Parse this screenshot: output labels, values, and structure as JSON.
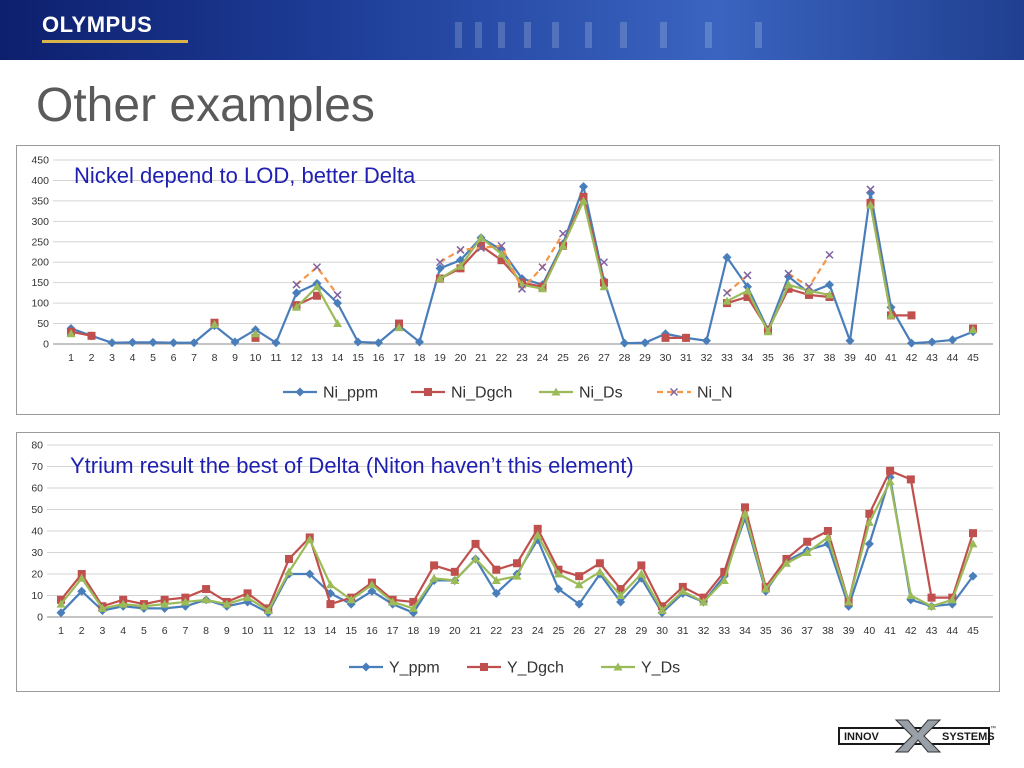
{
  "header": {
    "logo": "OLYMPUS"
  },
  "page": {
    "title": "Other examples"
  },
  "footer": {
    "logo_left": "INNOV",
    "logo_right": "SYSTEMS",
    "trademark": "™"
  },
  "colors": {
    "ppm": "#4a7ebb",
    "dgch": "#c0504d",
    "ds": "#9bbb59",
    "n": "#f79646",
    "n_marker": "#8064a2",
    "annotation": "#1f1fb0"
  },
  "chart_data": [
    {
      "type": "line",
      "annotation": "Nickel depend to LOD, better Delta",
      "categories": [
        "1",
        "2",
        "3",
        "4",
        "5",
        "6",
        "7",
        "8",
        "9",
        "10",
        "11",
        "12",
        "13",
        "14",
        "15",
        "16",
        "17",
        "18",
        "19",
        "20",
        "21",
        "22",
        "23",
        "24",
        "25",
        "26",
        "27",
        "28",
        "29",
        "30",
        "31",
        "32",
        "33",
        "34",
        "35",
        "36",
        "37",
        "38",
        "39",
        "40",
        "41",
        "42",
        "43",
        "44",
        "45"
      ],
      "ylim": [
        0,
        450
      ],
      "yticks": [
        0,
        50,
        100,
        150,
        200,
        250,
        300,
        350,
        400,
        450
      ],
      "grid": true,
      "legend_position": "bottom",
      "series": [
        {
          "name": "Ni_ppm",
          "marker": "diamond",
          "color": "#4a7ebb",
          "dash": false,
          "values": [
            38,
            20,
            3,
            4,
            4,
            3,
            3,
            45,
            5,
            35,
            3,
            125,
            148,
            100,
            5,
            3,
            45,
            5,
            185,
            205,
            260,
            230,
            160,
            145,
            245,
            385,
            155,
            2,
            3,
            25,
            15,
            8,
            212,
            140,
            35,
            165,
            125,
            145,
            8,
            370,
            90,
            2,
            5,
            10,
            30
          ]
        },
        {
          "name": "Ni_Dgch",
          "marker": "square",
          "color": "#c0504d",
          "dash": false,
          "values": [
            30,
            20,
            null,
            null,
            null,
            null,
            null,
            52,
            null,
            15,
            null,
            95,
            118,
            null,
            null,
            null,
            50,
            null,
            160,
            185,
            240,
            205,
            150,
            140,
            240,
            360,
            150,
            null,
            null,
            15,
            15,
            null,
            100,
            115,
            35,
            135,
            120,
            115,
            null,
            345,
            70,
            70,
            null,
            null,
            38
          ]
        },
        {
          "name": "Ni_Ds",
          "marker": "triangle",
          "color": "#9bbb59",
          "dash": false,
          "values": [
            25,
            null,
            null,
            null,
            null,
            null,
            null,
            48,
            null,
            25,
            null,
            90,
            140,
            50,
            null,
            null,
            40,
            null,
            160,
            190,
            260,
            220,
            145,
            135,
            240,
            350,
            140,
            null,
            null,
            null,
            null,
            null,
            105,
            130,
            30,
            145,
            130,
            120,
            null,
            340,
            70,
            null,
            null,
            null,
            35
          ]
        },
        {
          "name": "Ni_N",
          "marker": "x",
          "color": "#f79646",
          "dash": true,
          "values": [
            null,
            null,
            null,
            null,
            null,
            null,
            null,
            null,
            null,
            null,
            null,
            145,
            188,
            120,
            null,
            null,
            null,
            null,
            200,
            230,
            235,
            240,
            135,
            188,
            270,
            null,
            200,
            null,
            null,
            null,
            null,
            null,
            125,
            168,
            null,
            172,
            140,
            218,
            null,
            378,
            null,
            null,
            null,
            null,
            null
          ]
        }
      ]
    },
    {
      "type": "line",
      "annotation": "Ytrium result the best of Delta (Niton haven’t this element)",
      "categories": [
        "1",
        "2",
        "3",
        "4",
        "5",
        "6",
        "7",
        "8",
        "9",
        "10",
        "11",
        "12",
        "13",
        "14",
        "15",
        "16",
        "17",
        "18",
        "19",
        "20",
        "21",
        "22",
        "23",
        "24",
        "25",
        "26",
        "27",
        "28",
        "29",
        "30",
        "31",
        "32",
        "33",
        "34",
        "35",
        "36",
        "37",
        "38",
        "39",
        "40",
        "41",
        "42",
        "43",
        "44",
        "45"
      ],
      "ylim": [
        0,
        80
      ],
      "yticks": [
        0,
        10,
        20,
        30,
        40,
        50,
        60,
        70,
        80
      ],
      "grid": true,
      "legend_position": "bottom",
      "series": [
        {
          "name": "Y_ppm",
          "marker": "diamond",
          "color": "#4a7ebb",
          "dash": false,
          "values": [
            2,
            12,
            3,
            5,
            4,
            4,
            5,
            8,
            5,
            7,
            2,
            20,
            20,
            11,
            6,
            12,
            6,
            2,
            17,
            17,
            27,
            11,
            20,
            36,
            13,
            6,
            20,
            7,
            18,
            2,
            11,
            7,
            19,
            46,
            12,
            26,
            31,
            34,
            5,
            34,
            65,
            8,
            5,
            6,
            19
          ]
        },
        {
          "name": "Y_Dgch",
          "marker": "square",
          "color": "#c0504d",
          "dash": false,
          "values": [
            8,
            20,
            5,
            8,
            6,
            8,
            9,
            13,
            7,
            11,
            4,
            27,
            37,
            6,
            9,
            16,
            8,
            7,
            24,
            21,
            34,
            22,
            25,
            41,
            22,
            19,
            25,
            13,
            24,
            5,
            14,
            9,
            21,
            51,
            14,
            27,
            35,
            40,
            7,
            48,
            68,
            64,
            9,
            9,
            39
          ]
        },
        {
          "name": "Y_Ds",
          "marker": "triangle",
          "color": "#9bbb59",
          "dash": false,
          "values": [
            6,
            18,
            4,
            6,
            5,
            6,
            7,
            8,
            6,
            9,
            3,
            21,
            36,
            15,
            8,
            15,
            7,
            4,
            18,
            17,
            27,
            17,
            19,
            38,
            20,
            15,
            21,
            10,
            20,
            3,
            12,
            7,
            17,
            48,
            13,
            25,
            30,
            37,
            7,
            44,
            63,
            10,
            5,
            8,
            34
          ]
        }
      ]
    }
  ]
}
